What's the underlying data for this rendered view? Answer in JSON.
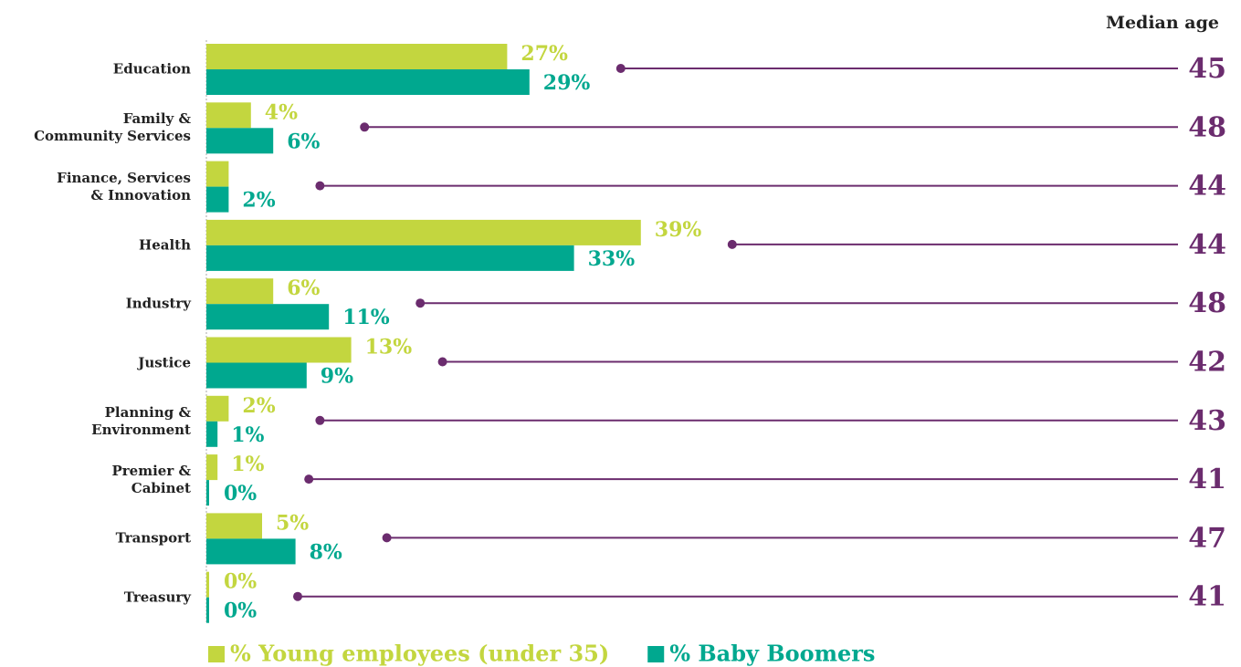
{
  "chart_data": {
    "type": "bar",
    "orientation": "horizontal",
    "categories": [
      "Education",
      "Family &\nCommunity Services",
      "Finance, Services\n& Innovation",
      "Health",
      "Industry",
      "Justice",
      "Planning &\nEnvironment",
      "Premier &\nCabinet",
      "Transport",
      "Treasury"
    ],
    "series": [
      {
        "name": "% Young employees (under 35)",
        "color": "#c3d63f",
        "values": [
          27,
          4,
          2,
          39,
          6,
          13,
          2,
          1,
          5,
          0
        ],
        "value_labels": [
          "27%",
          "4%",
          null,
          "39%",
          "6%",
          "13%",
          "2%",
          "1%",
          "5%",
          "0%"
        ]
      },
      {
        "name": "% Baby Boomers",
        "color": "#00a88f",
        "values": [
          29,
          6,
          2,
          33,
          11,
          9,
          1,
          0,
          8,
          0
        ],
        "value_labels": [
          "29%",
          "6%",
          "2%",
          "33%",
          "11%",
          "9%",
          "1%",
          "0%",
          "8%",
          "0%"
        ]
      }
    ],
    "median_age": {
      "title": "Median age",
      "color": "#6b2c6e",
      "values": [
        45,
        48,
        44,
        44,
        48,
        42,
        43,
        41,
        47,
        41
      ]
    },
    "xlim": [
      0,
      90
    ],
    "legend": "bottom-left"
  }
}
